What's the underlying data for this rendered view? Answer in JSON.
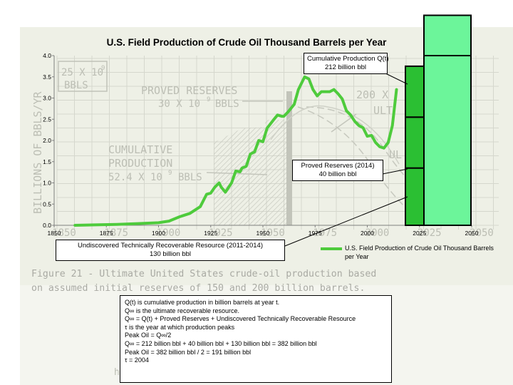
{
  "chart_data": {
    "type": "line",
    "title": "U.S. Field Production of Crude Oil Thousand Barrels per Year",
    "xlim": [
      1850,
      2050
    ],
    "ylim": [
      0,
      4.0
    ],
    "x_ticks": [
      "1850",
      "1875",
      "1900",
      "1925",
      "1950",
      "1975",
      "2000",
      "2025",
      "2050"
    ],
    "y_ticks": [
      "0.0",
      "0.5",
      "1.0",
      "1.5",
      "2.0",
      "2.5",
      "3.0",
      "3.5",
      "4.0"
    ],
    "series": [
      {
        "name": "U.S. Field Production of Crude Oil Thousand Barrels per Year",
        "color": "#4ecb3c",
        "x": [
          1860,
          1880,
          1890,
          1895,
          1900,
          1905,
          1910,
          1915,
          1920,
          1923,
          1925,
          1927,
          1929,
          1930,
          1932,
          1935,
          1937,
          1939,
          1940,
          1942,
          1944,
          1946,
          1948,
          1950,
          1952,
          1955,
          1957,
          1959,
          1960,
          1962,
          1965,
          1967,
          1970,
          1972,
          1974,
          1976,
          1978,
          1980,
          1982,
          1984,
          1986,
          1988,
          1990,
          1992,
          1994,
          1996,
          1998,
          2000,
          2002,
          2004,
          2006,
          2008,
          2010,
          2012,
          2014
        ],
        "y": [
          0.0,
          0.02,
          0.04,
          0.05,
          0.06,
          0.1,
          0.2,
          0.28,
          0.44,
          0.73,
          0.76,
          0.9,
          1.0,
          0.9,
          0.78,
          1.0,
          1.28,
          1.26,
          1.35,
          1.39,
          1.68,
          1.73,
          2.0,
          1.97,
          2.29,
          2.48,
          2.6,
          2.57,
          2.57,
          2.67,
          2.85,
          3.2,
          3.5,
          3.45,
          3.2,
          3.05,
          3.15,
          3.15,
          3.15,
          3.2,
          3.1,
          2.98,
          2.7,
          2.6,
          2.45,
          2.35,
          2.3,
          2.1,
          2.12,
          1.95,
          1.85,
          1.82,
          1.95,
          2.35,
          3.2
        ]
      }
    ],
    "stacked_bar": {
      "x": 2021,
      "bars": [
        {
          "segments": [
            1.35,
            1.2,
            1.2
          ]
        },
        {
          "segments": [
            4.0,
            0.95
          ]
        }
      ],
      "colors": [
        "#2bbf33",
        "#6cf59a"
      ]
    },
    "legend_position": "bottom-right"
  },
  "background": {
    "left_labels": [
      "BILLIONS OF BBLS/YR"
    ],
    "labels": [
      "25 X 10",
      "9",
      "BBLS",
      "PROVED RESERVES",
      "30 X 10",
      "9",
      "BBLS",
      "CUMULATIVE",
      "PRODUCTION",
      "52.4 X 10",
      "9",
      "BBLS",
      "200 X",
      "ULT",
      "UL",
      "h"
    ],
    "x_labels": [
      "1850",
      "1875",
      "1900",
      "1925",
      "1950",
      "1975",
      "2000",
      "2025",
      "2050"
    ]
  },
  "callouts": {
    "cumulative": {
      "line1": "Cumulative Production Q(t)",
      "line2": "212 billion bbl"
    },
    "proved": {
      "line1": "Proved Reserves (2014)",
      "line2": "40 billion bbl"
    },
    "undiscovered": {
      "line1": "Undiscovered Technically Recoverable Resource (2011-2014)",
      "line2": "130 billion bbl"
    }
  },
  "legend": {
    "text": "U.S. Field Production of Crude Oil Thousand Barrels per Year"
  },
  "caption": {
    "line1": "Figure 21 - Ultimate United States crude-oil production based",
    "line2": "on assumed initial reserves of 150 and 200 billion barrels."
  },
  "formula": {
    "lines": [
      "Q(t) is cumulative production in billion barrels at year t.",
      "Q∞ is the ultimate recoverable resource.",
      "Q∞ = Q(t) + Proved Reserves + Undiscovered Technically Recoverable Resource",
      "τ is the year at which production peaks",
      "Peak Oil = Q∞/2",
      "Q∞ = 212 billion bbl + 40 billion bbl + 130 billion bbl = 382 billion bbl",
      "Peak Oil = 382 billion bbl / 2 = 191 billion bbl",
      "τ = 2004"
    ]
  }
}
